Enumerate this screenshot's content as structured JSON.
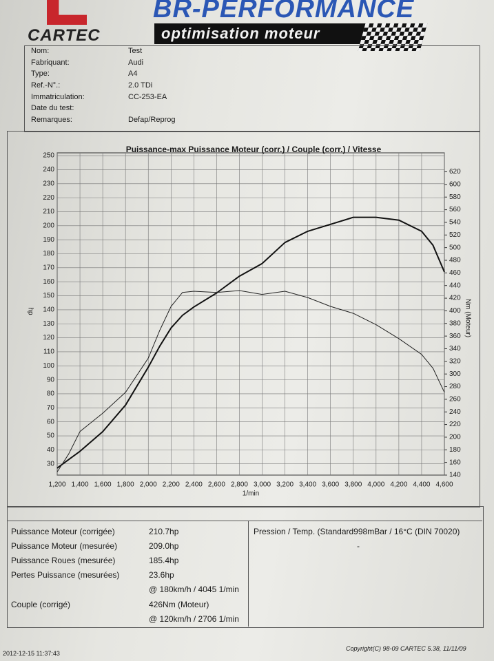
{
  "header": {
    "logo": "CARTEC",
    "brand": "BR-PERFORMANCE",
    "tagline": "optimisation moteur"
  },
  "vehicle": [
    {
      "label": "Nom:",
      "value": "Test"
    },
    {
      "label": "Fabriquant:",
      "value": "Audi"
    },
    {
      "label": "Type:",
      "value": "A4"
    },
    {
      "label": "Ref.-N°.:",
      "value": "2.0 TDi"
    },
    {
      "label": "Immatriculation:",
      "value": "CC-253-EA"
    },
    {
      "label": "Date du test:"
    },
    {
      "label": "Remarques:",
      "value": "Defap/Reprog"
    }
  ],
  "chart_data": {
    "type": "line",
    "title": "Puissance-max Puissance Moteur (corr.) / Couple (corr.) / Vitesse",
    "x_label": "1/min",
    "y_label": "hp",
    "y2_label": "Nm (Moteur)",
    "x": [
      1200,
      1300,
      1400,
      1600,
      1800,
      2000,
      2100,
      2200,
      2300,
      2400,
      2600,
      2800,
      3000,
      3200,
      3400,
      3600,
      3800,
      4000,
      4200,
      4400,
      4500,
      4600
    ],
    "series": [
      {
        "color": "#111111",
        "line_width": 2,
        "axis": "y",
        "values": [
          27,
          33,
          39,
          53,
          72,
          99,
          114,
          127,
          136,
          142,
          152,
          164,
          173,
          188,
          196,
          201,
          206,
          206,
          204,
          196,
          186,
          167
        ]
      },
      {
        "color": "#222222",
        "line_width": 1,
        "axis": "y2",
        "values": [
          145,
          173,
          209,
          238,
          271,
          325,
          369,
          407,
          429,
          431,
          429,
          432,
          426,
          431,
          421,
          407,
          396,
          378,
          356,
          331,
          309,
          271
        ]
      }
    ],
    "xlim": [
      1200,
      4600
    ],
    "xticks": [
      {
        "value": 1200,
        "label": "1,200"
      },
      {
        "value": 1400,
        "label": "1,400"
      },
      {
        "value": 1600,
        "label": "1,600"
      },
      {
        "value": 1800,
        "label": "1,800"
      },
      {
        "value": 2000,
        "label": "2,000"
      },
      {
        "value": 2200,
        "label": "2,200"
      },
      {
        "value": 2400,
        "label": "2,400"
      },
      {
        "value": 2600,
        "label": "2,600"
      },
      {
        "value": 2800,
        "label": "2,800"
      },
      {
        "value": 3000,
        "label": "3,000"
      },
      {
        "value": 3200,
        "label": "3,200"
      },
      {
        "value": 3400,
        "label": "3,400"
      },
      {
        "value": 3600,
        "label": "3,600"
      },
      {
        "value": 3800,
        "label": "3,800"
      },
      {
        "value": 4000,
        "label": "4,000"
      },
      {
        "value": 4200,
        "label": "4,200"
      },
      {
        "value": 4400,
        "label": "4,400"
      },
      {
        "value": 4600,
        "label": "4,600"
      }
    ],
    "ylim": [
      22,
      252
    ],
    "yticks": [
      30,
      40,
      50,
      60,
      70,
      80,
      90,
      100,
      110,
      120,
      130,
      140,
      150,
      160,
      170,
      180,
      190,
      200,
      210,
      220,
      230,
      240,
      250
    ],
    "y2lim": [
      140,
      650
    ],
    "y2ticks": [
      140,
      160,
      180,
      200,
      220,
      240,
      260,
      280,
      300,
      320,
      340,
      360,
      380,
      400,
      420,
      440,
      460,
      480,
      500,
      520,
      540,
      560,
      580,
      600,
      620
    ],
    "grid": true
  },
  "results": {
    "left": [
      {
        "label": "Puissance Moteur (corrigée)",
        "value": "210.7hp"
      },
      {
        "label": "Puissance Moteur (mesurée)",
        "value": "209.0hp"
      },
      {
        "label": "Puissance Roues (mesurée)",
        "value": "185.4hp"
      },
      {
        "label": "Pertes Puissance (mesurées)",
        "value": "23.6hp"
      },
      {
        "value": "@ 180km/h / 4045 1/min"
      },
      {
        "label": "Couple (corrigé)",
        "value": "426Nm (Moteur)"
      },
      {
        "value": "@ 120km/h / 2706 1/min"
      }
    ],
    "conditions": "Pression / Temp. (Standard998mBar / 16°C (DIN 70020)",
    "conditions_value": "-"
  },
  "footer": {
    "timestamp": "2012-12-15 11:37:43",
    "copyright": "Copyright(C) 98-09 CARTEC 5.38, 11/11/09"
  }
}
